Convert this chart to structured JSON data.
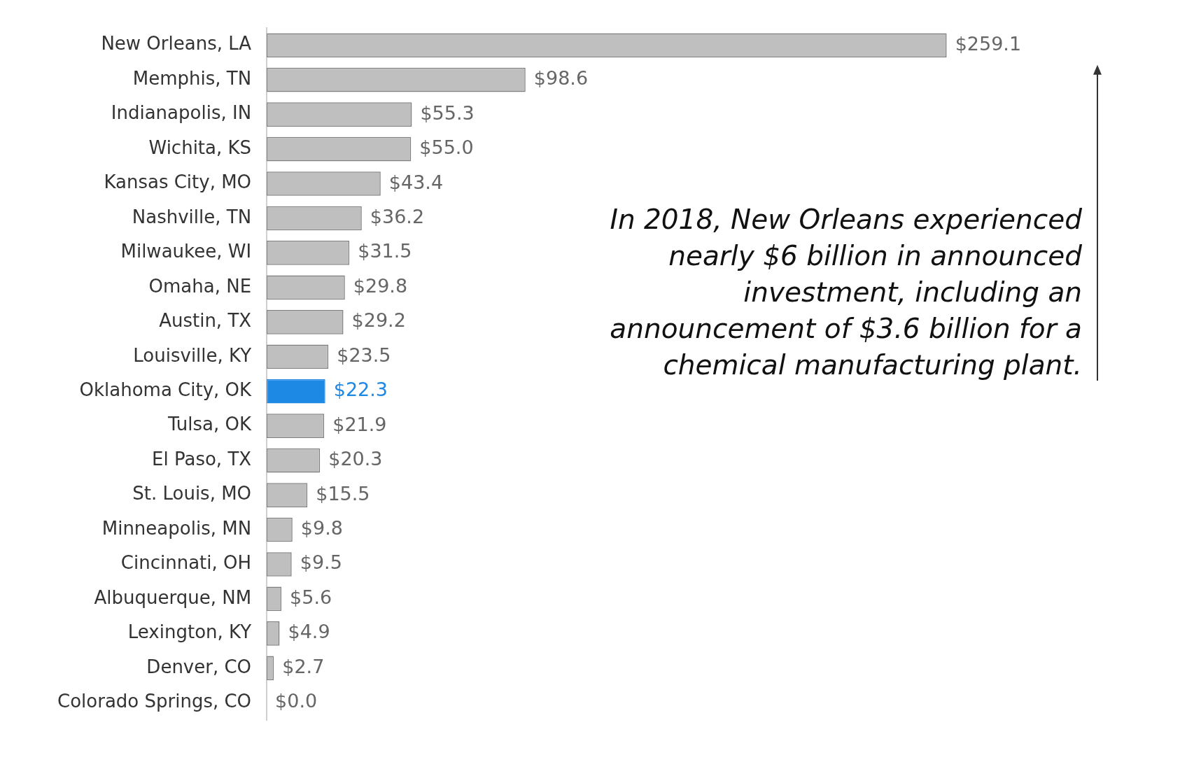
{
  "chart_data": {
    "type": "bar",
    "orientation": "horizontal",
    "categories": [
      "New Orleans, LA",
      "Memphis, TN",
      "Indianapolis, IN",
      "Wichita, KS",
      "Kansas City, MO",
      "Nashville, TN",
      "Milwaukee, WI",
      "Omaha, NE",
      "Austin, TX",
      "Louisville, KY",
      "Oklahoma City, OK",
      "Tulsa, OK",
      "El Paso, TX",
      "St. Louis, MO",
      "Minneapolis, MN",
      "Cincinnati, OH",
      "Albuquerque, NM",
      "Lexington, KY",
      "Denver, CO",
      "Colorado Springs, CO"
    ],
    "values": [
      259.1,
      98.6,
      55.3,
      55.0,
      43.4,
      36.2,
      31.5,
      29.8,
      29.2,
      23.5,
      22.3,
      21.9,
      20.3,
      15.5,
      9.8,
      9.5,
      5.6,
      4.9,
      2.7,
      0.0
    ],
    "value_labels": [
      "$259.1",
      "$98.6",
      "$55.3",
      "$55.0",
      "$43.4",
      "$36.2",
      "$31.5",
      "$29.8",
      "$29.2",
      "$23.5",
      "$22.3",
      "$21.9",
      "$20.3",
      "$15.5",
      "$9.8",
      "$9.5",
      "$5.6",
      "$4.9",
      "$2.7",
      "$0.0"
    ],
    "colors": [
      "#bfbfbf",
      "#bfbfbf",
      "#bfbfbf",
      "#bfbfbf",
      "#bfbfbf",
      "#bfbfbf",
      "#bfbfbf",
      "#bfbfbf",
      "#bfbfbf",
      "#bfbfbf",
      "#1e88e5",
      "#bfbfbf",
      "#bfbfbf",
      "#bfbfbf",
      "#bfbfbf",
      "#bfbfbf",
      "#bfbfbf",
      "#bfbfbf",
      "#bfbfbf",
      "#bfbfbf"
    ],
    "tick_labels": "y",
    "grid": false,
    "legend": false,
    "annotations": [
      "In 2018, New Orleans experienced nearly $6 billion in announced investment, including an announcement of $3.6 billion for a chemical manufacturing plant."
    ]
  }
}
